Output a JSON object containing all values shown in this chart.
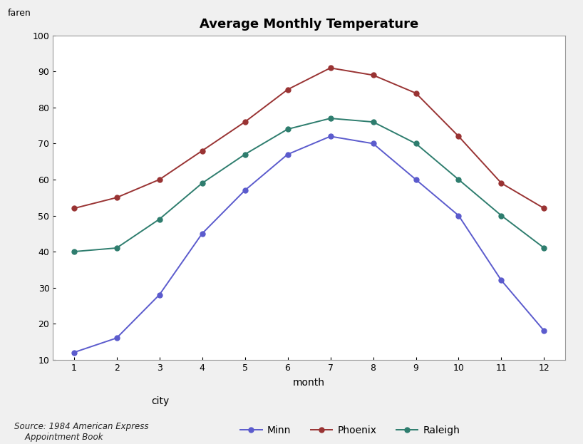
{
  "title": "Average Monthly Temperature",
  "xlabel": "month",
  "ylabel": "faren",
  "months": [
    1,
    2,
    3,
    4,
    5,
    6,
    7,
    8,
    9,
    10,
    11,
    12
  ],
  "minn": [
    12,
    16,
    28,
    45,
    57,
    67,
    72,
    70,
    60,
    50,
    32,
    18
  ],
  "phoenix": [
    52,
    55,
    60,
    68,
    76,
    85,
    91,
    89,
    84,
    72,
    59,
    52
  ],
  "raleigh": [
    40,
    41,
    49,
    59,
    67,
    74,
    77,
    76,
    70,
    60,
    50,
    41
  ],
  "minn_color": "#5b5bcd",
  "phoenix_color": "#993333",
  "raleigh_color": "#2e7d6e",
  "fig_bg_color": "#f0f0f0",
  "plot_bg_color": "#ffffff",
  "border_color": "#cccccc",
  "ylim": [
    10,
    100
  ],
  "yticks": [
    10,
    20,
    30,
    40,
    50,
    60,
    70,
    80,
    90,
    100
  ],
  "xticks": [
    1,
    2,
    3,
    4,
    5,
    6,
    7,
    8,
    9,
    10,
    11,
    12
  ],
  "source_text": "Source: 1984 American Express\n    Appointment Book",
  "legend_label_city": "city",
  "legend_label_minn": "Minn",
  "legend_label_phoenix": "Phoenix",
  "legend_label_raleigh": "Raleigh"
}
